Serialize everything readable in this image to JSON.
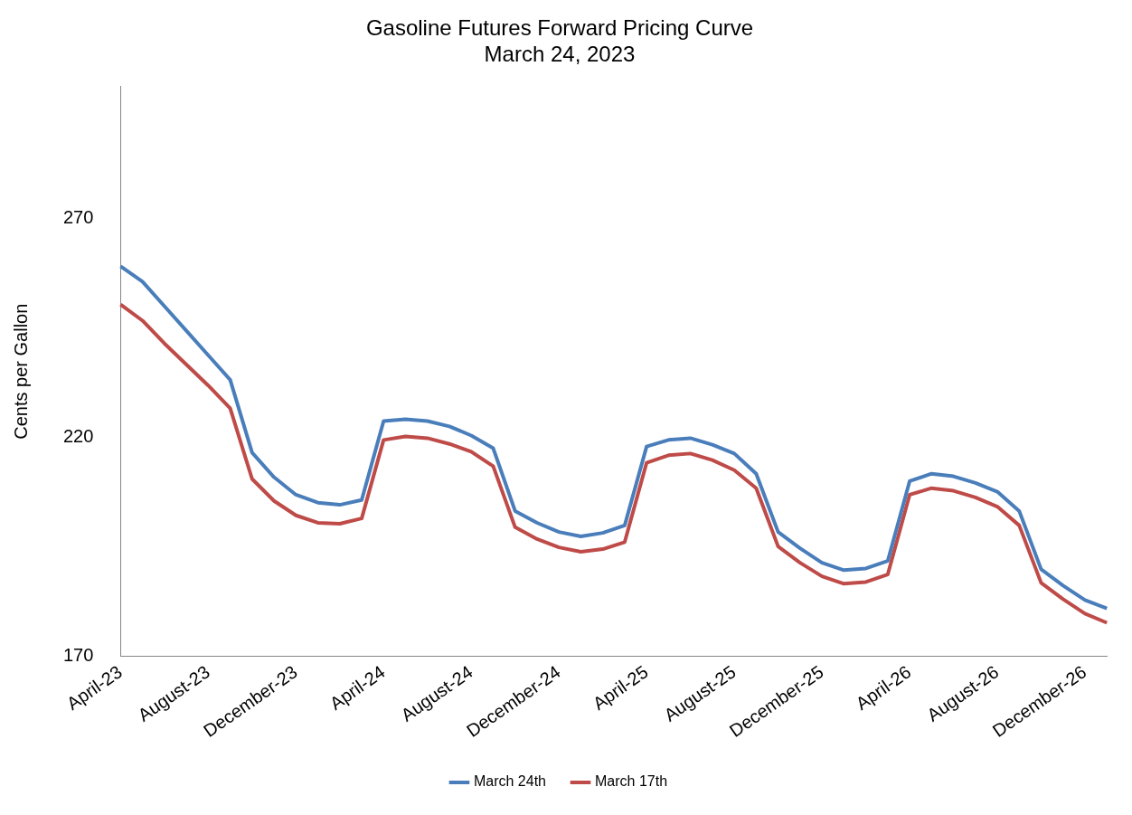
{
  "chart_data": {
    "type": "line",
    "title": "Gasoline Futures Forward Pricing Curve",
    "subtitle": "March 24, 2023",
    "ylabel": "Cents per Gallon",
    "categories": [
      "April-23",
      null,
      null,
      null,
      "August-23",
      null,
      null,
      null,
      "December-23",
      null,
      null,
      null,
      "April-24",
      null,
      null,
      null,
      "August-24",
      null,
      null,
      null,
      "December-24",
      null,
      null,
      null,
      "April-25",
      null,
      null,
      null,
      "August-25",
      null,
      null,
      null,
      "December-25",
      null,
      null,
      null,
      "April-26",
      null,
      null,
      null,
      "August-26",
      null,
      null,
      null,
      "December-26",
      null
    ],
    "series": [
      {
        "name": "March 24th",
        "color": "#4a7ebb",
        "values": [
          259.0,
          255.5,
          249.9,
          244.3,
          238.7,
          233.1,
          216.5,
          210.9,
          206.9,
          205.1,
          204.6,
          205.7,
          223.7,
          224.1,
          223.7,
          222.5,
          220.4,
          217.5,
          203.2,
          200.5,
          198.4,
          197.4,
          198.2,
          199.9,
          217.9,
          219.4,
          219.8,
          218.3,
          216.3,
          211.7,
          198.4,
          194.7,
          191.4,
          189.7,
          190.1,
          191.8,
          210.0,
          211.7,
          211.1,
          209.6,
          207.6,
          203.2,
          189.9,
          186.2,
          182.9,
          181.0
        ]
      },
      {
        "name": "March 17th",
        "color": "#be4b48",
        "values": [
          250.3,
          246.6,
          241.4,
          236.6,
          231.8,
          226.6,
          210.5,
          205.5,
          202.2,
          200.5,
          200.3,
          201.5,
          219.4,
          220.2,
          219.8,
          218.5,
          216.7,
          213.4,
          199.5,
          196.8,
          194.9,
          193.9,
          194.5,
          196.1,
          214.2,
          215.9,
          216.3,
          214.8,
          212.5,
          208.4,
          195.1,
          191.4,
          188.3,
          186.6,
          187.0,
          188.7,
          206.9,
          208.4,
          207.8,
          206.3,
          204.2,
          199.9,
          186.8,
          183.1,
          179.8,
          177.7
        ]
      }
    ],
    "ylim": [
      170,
      300
    ],
    "yticks": [
      170,
      220,
      270
    ],
    "grid": false,
    "legend": "bottom",
    "marker": "none",
    "line_style": "solid"
  }
}
